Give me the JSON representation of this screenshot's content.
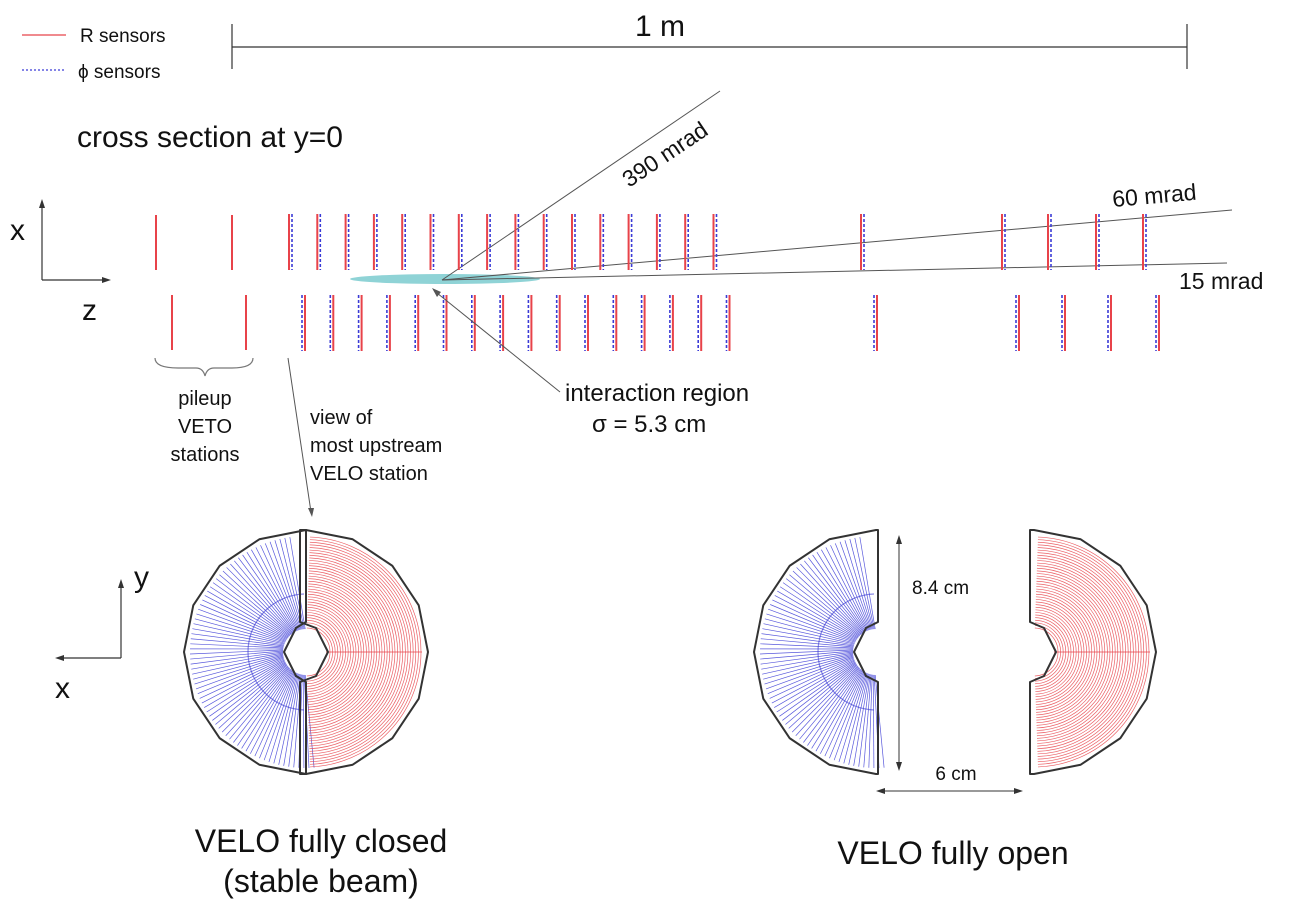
{
  "legend": {
    "r_label": "R sensors",
    "phi_label": "ϕ sensors"
  },
  "scale_label": "1 m",
  "section_title": "cross section at y=0",
  "axes_top": {
    "vertical": "x",
    "horizontal": "z"
  },
  "angles": {
    "wide": "390 mrad",
    "mid": "60 mrad",
    "narrow": "15 mrad"
  },
  "interaction": {
    "line1": "interaction region",
    "line2": "σ = 5.3 cm"
  },
  "pileup": {
    "line1": "pileup",
    "line2": "VETO",
    "line3": "stations"
  },
  "upstream_view": {
    "line1": "view of",
    "line2": "most upstream",
    "line3": "VELO station"
  },
  "axes_bottom": {
    "vertical": "y",
    "horizontal": "x"
  },
  "dimensions": {
    "height": "8.4 cm",
    "gap": "6 cm"
  },
  "captions": {
    "closed_line1": "VELO fully closed",
    "closed_line2": "(stable beam)",
    "open": "VELO fully open"
  },
  "colors": {
    "r_sensor": "#e8434a",
    "phi_sensor": "#3b3bd6",
    "beam_region": "#8fd3d6",
    "outline": "#333333"
  }
}
